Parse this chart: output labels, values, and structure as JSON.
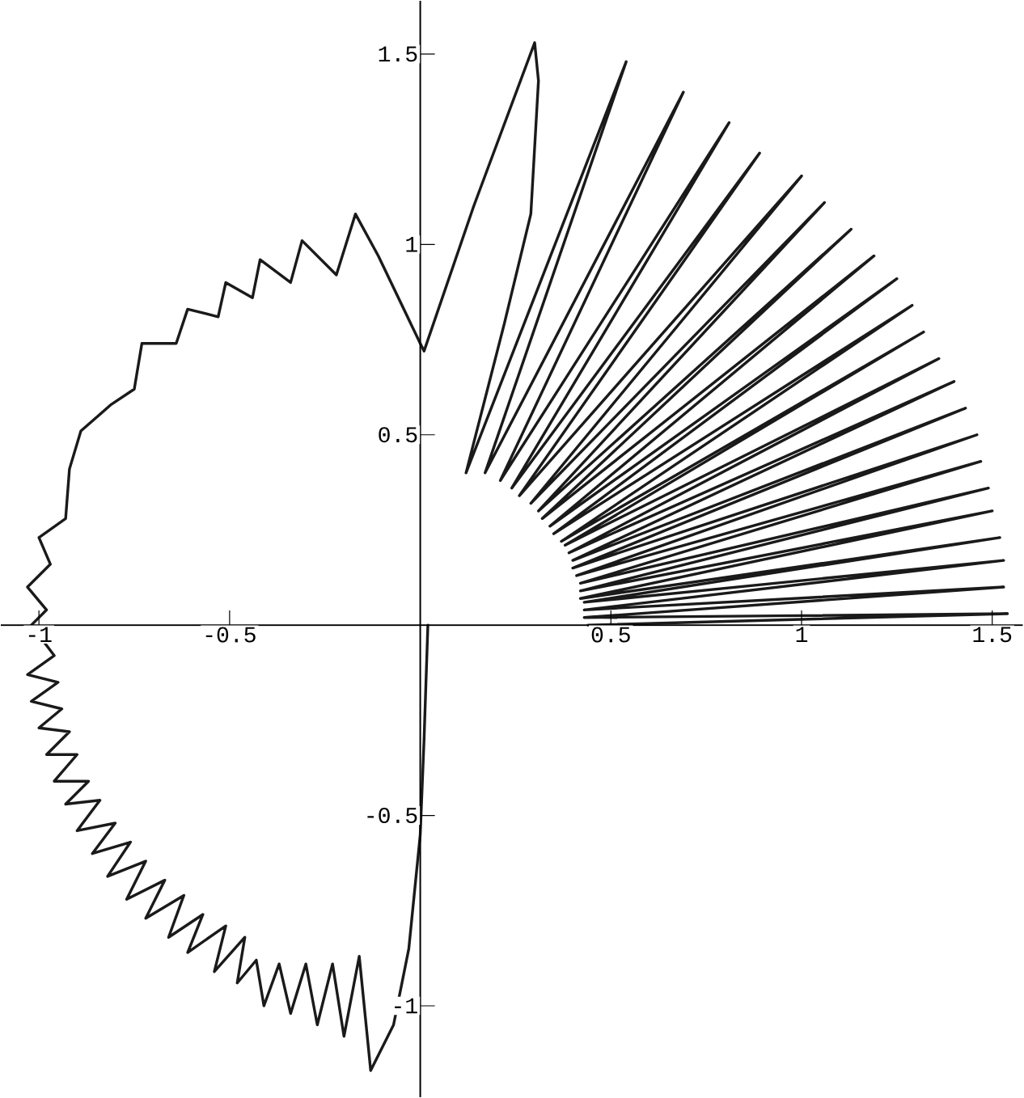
{
  "chart_data": {
    "type": "line",
    "xlim": [
      -1.1,
      1.58
    ],
    "ylim": [
      -1.24,
      1.64
    ],
    "xticks": [
      -1,
      -0.5,
      0.5,
      1,
      1.5
    ],
    "yticks": [
      -1,
      -0.5,
      0.5,
      1,
      1.5
    ],
    "series": [
      {
        "color": "#1a1a1a",
        "x": [
          0.02,
          0.01,
          0.0,
          -0.03,
          -0.07,
          -0.13,
          -0.16,
          -0.2,
          -0.23,
          -0.27,
          -0.3,
          -0.34,
          -0.37,
          -0.41,
          -0.43,
          -0.48,
          -0.46,
          -0.54,
          -0.51,
          -0.61,
          -0.57,
          -0.66,
          -0.62,
          -0.72,
          -0.67,
          -0.77,
          -0.72,
          -0.82,
          -0.76,
          -0.86,
          -0.8,
          -0.9,
          -0.84,
          -0.93,
          -0.87,
          -0.96,
          -0.9,
          -0.98,
          -0.92,
          -1.0,
          -0.94,
          -1.02,
          -0.95,
          -1.03,
          -0.96,
          null,
          null,
          -1.02,
          -0.98,
          -1.03,
          -0.97,
          -1.0,
          -0.93,
          -0.92,
          -0.89,
          -0.81,
          -0.75,
          -0.73,
          -0.64,
          -0.61,
          -0.53,
          -0.51,
          -0.44,
          -0.42,
          -0.34,
          -0.31,
          -0.22,
          -0.17,
          -0.11,
          0.0,
          0.01,
          0.14,
          0.3,
          0.31,
          0.29,
          0.22,
          0.12,
          0.54,
          0.17,
          0.69,
          0.21,
          0.81,
          0.24,
          0.89,
          0.26,
          1.0,
          0.29,
          1.06,
          0.31,
          1.13,
          0.32,
          1.19,
          0.34,
          1.25,
          0.35,
          1.29,
          0.37,
          1.32,
          0.38,
          1.36,
          0.39,
          1.4,
          0.4,
          1.43,
          0.4,
          1.46,
          0.41,
          1.47,
          0.42,
          1.49,
          0.42,
          1.5,
          0.42,
          1.52,
          0.43,
          1.53,
          0.43,
          1.53,
          0.43,
          1.54,
          0.44
        ],
        "values": [
          0.0,
          -0.3,
          -0.55,
          -0.85,
          -1.05,
          -1.17,
          -0.87,
          -1.08,
          -0.89,
          -1.05,
          -0.89,
          -1.02,
          -0.89,
          -1.0,
          -0.88,
          -0.94,
          -0.82,
          -0.91,
          -0.79,
          -0.86,
          -0.76,
          -0.82,
          -0.71,
          -0.77,
          -0.67,
          -0.72,
          -0.62,
          -0.66,
          -0.57,
          -0.6,
          -0.52,
          -0.54,
          -0.46,
          -0.47,
          -0.41,
          -0.41,
          -0.34,
          -0.34,
          -0.28,
          -0.27,
          -0.22,
          -0.2,
          -0.15,
          -0.13,
          -0.08,
          null,
          null,
          0.0,
          0.04,
          0.1,
          0.16,
          0.23,
          0.28,
          0.41,
          0.51,
          0.58,
          0.62,
          0.74,
          0.74,
          0.83,
          0.81,
          0.9,
          0.86,
          0.96,
          0.9,
          1.01,
          0.92,
          1.08,
          0.97,
          0.74,
          0.72,
          1.1,
          1.53,
          1.43,
          1.08,
          0.79,
          0.4,
          1.48,
          0.4,
          1.4,
          0.38,
          1.32,
          0.36,
          1.24,
          0.34,
          1.18,
          0.32,
          1.11,
          0.3,
          1.04,
          0.28,
          0.97,
          0.26,
          0.91,
          0.24,
          0.84,
          0.22,
          0.77,
          0.21,
          0.7,
          0.19,
          0.64,
          0.17,
          0.57,
          0.15,
          0.5,
          0.13,
          0.43,
          0.11,
          0.36,
          0.09,
          0.3,
          0.07,
          0.23,
          0.06,
          0.17,
          0.04,
          0.1,
          0.02,
          0.03,
          0.0
        ]
      }
    ]
  }
}
